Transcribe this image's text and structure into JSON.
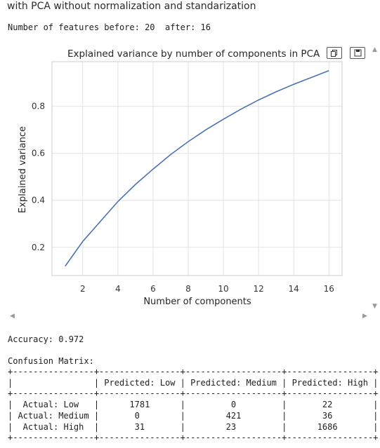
{
  "heading": "with PCA without normalization and standarization",
  "features_line": "Number of features before: 20  after: 16",
  "chart_data": {
    "type": "line",
    "title": "Explained variance by number of components in PCA",
    "xlabel": "Number of components",
    "ylabel": "Explained variance",
    "x": [
      1,
      2,
      3,
      4,
      5,
      6,
      7,
      8,
      9,
      10,
      11,
      12,
      13,
      14,
      15,
      16
    ],
    "series": [
      {
        "values": [
          0.12,
          0.225,
          0.31,
          0.395,
          0.468,
          0.533,
          0.595,
          0.65,
          0.7,
          0.745,
          0.788,
          0.827,
          0.862,
          0.894,
          0.923,
          0.952
        ]
      }
    ],
    "xticks": [
      2,
      4,
      6,
      8,
      10,
      12,
      14,
      16
    ],
    "yticks": [
      0.2,
      0.4,
      0.6,
      0.8
    ],
    "xlim": [
      0.25,
      16.75
    ],
    "ylim": [
      0.08,
      0.99
    ],
    "grid": true,
    "color": "#4c72b0"
  },
  "toolbar": {
    "copy_icon": "copy-icon",
    "save_icon": "save-icon"
  },
  "accuracy_line": "Accuracy: 0.972",
  "confusion_title": "Confusion Matrix:",
  "confusion_table": "+----------------+----------------+-------------------+-----------------+\n|                | Predicted: Low | Predicted: Medium | Predicted: High |\n+----------------+----------------+-------------------+-----------------+\n|  Actual: Low   |      1781      |         0         |       22        |\n| Actual: Medium |       0        |        421        |       36        |\n|  Actual: High  |       31       |        23         |      1686       |\n+----------------+----------------+-------------------+-----------------+"
}
